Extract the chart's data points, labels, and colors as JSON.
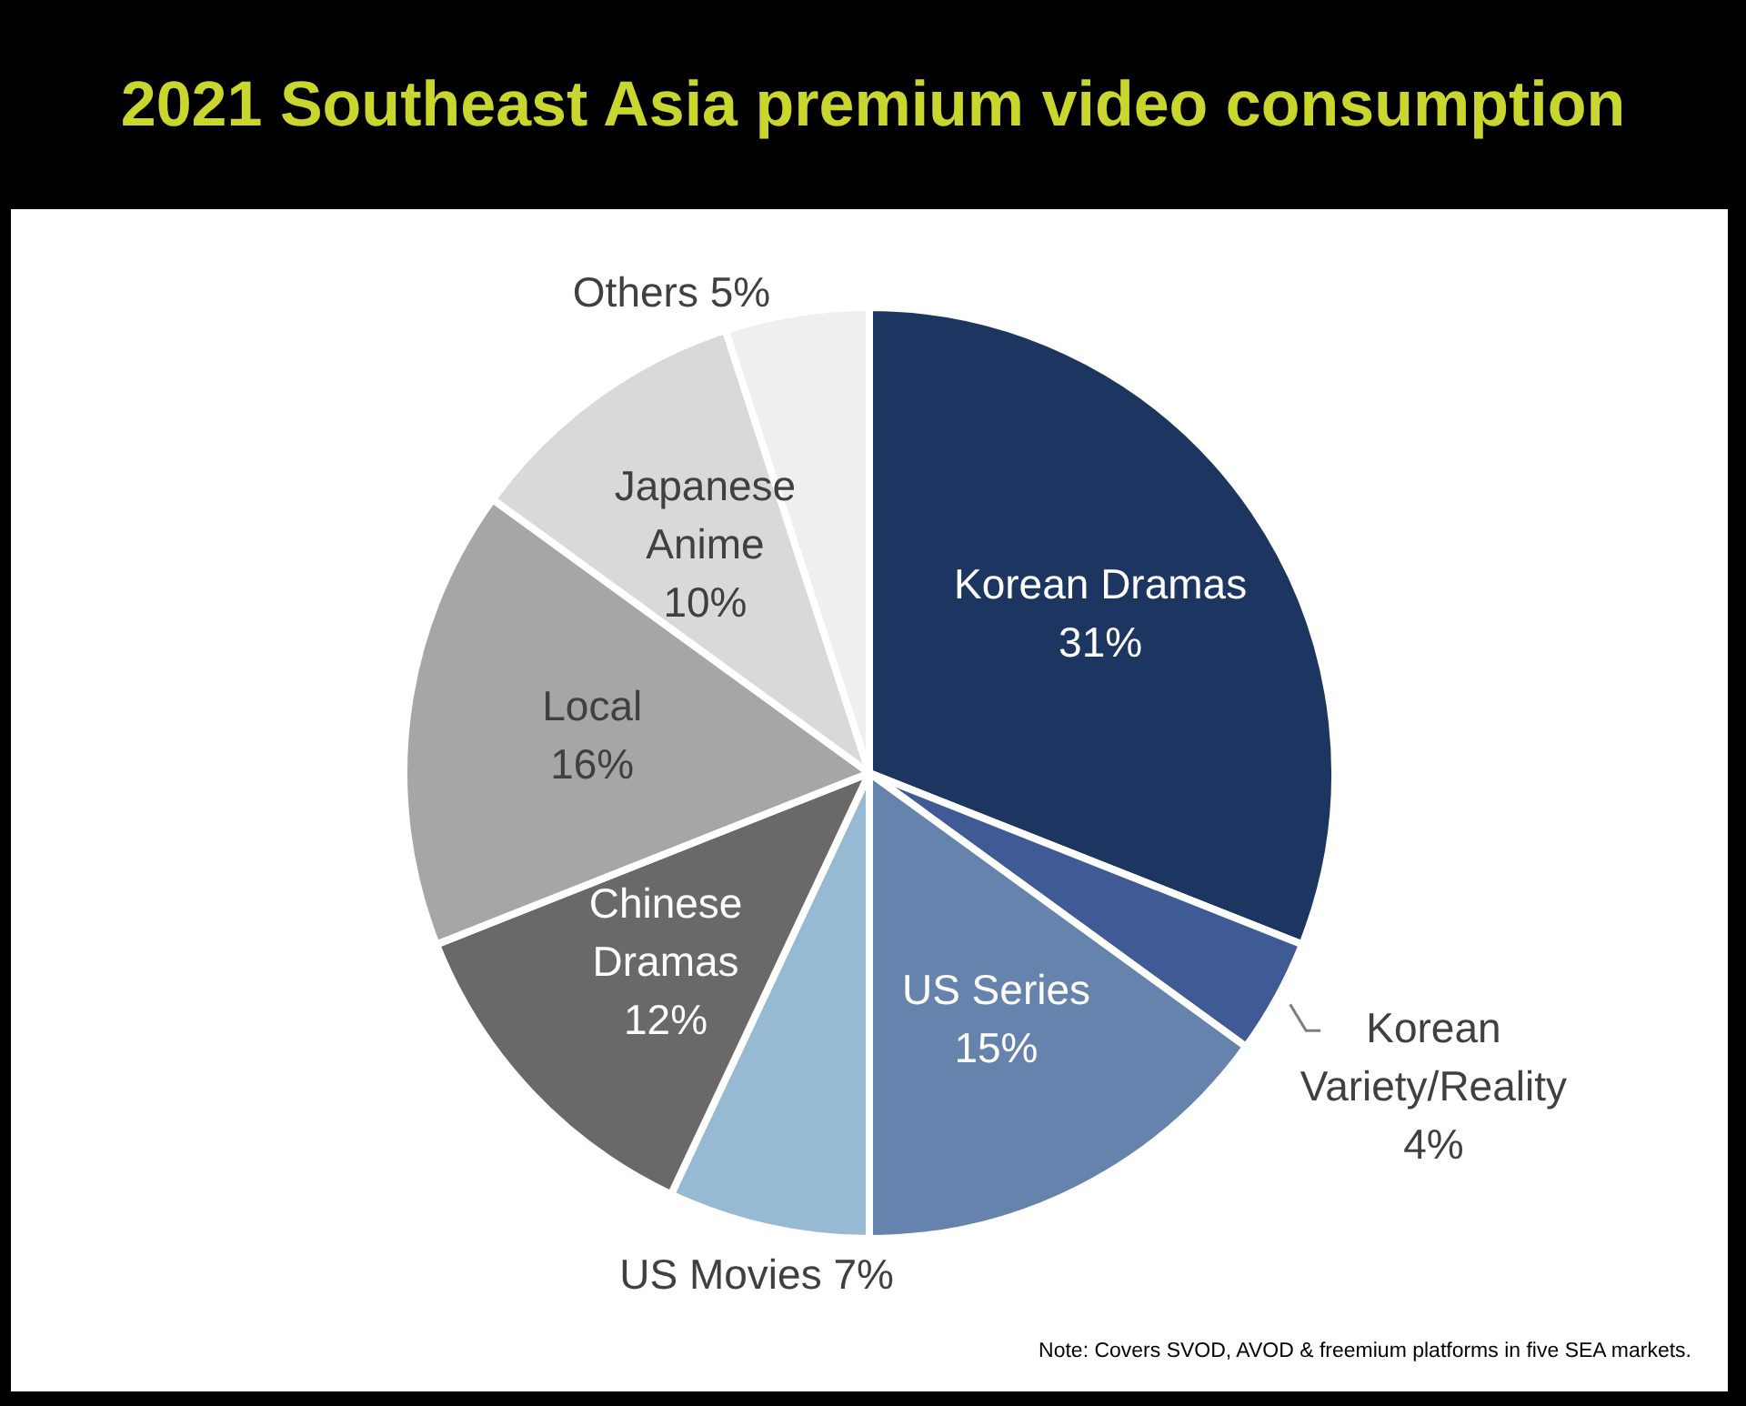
{
  "chart_data": {
    "type": "pie",
    "title": "2021 Southeast Asia premium video consumption",
    "categories": [
      "Korean Dramas",
      "Korean Variety/Reality",
      "US Series",
      "US Movies",
      "Chinese Dramas",
      "Local",
      "Japanese Anime",
      "Others"
    ],
    "values": [
      31,
      4,
      15,
      7,
      12,
      16,
      10,
      5
    ],
    "colors": [
      "#1d3661",
      "#3f5a94",
      "#6683ad",
      "#97bad4",
      "#6b6868",
      "#a6a6a6",
      "#d9d9d9",
      "#efefef"
    ],
    "value_labels": [
      "31%",
      "4%",
      "15%",
      "7%",
      "12%",
      "16%",
      "10%",
      "5%"
    ],
    "legend": false,
    "annotations": [
      "Note: Covers SVOD, AVOD & freemium platforms in five SEA markets."
    ]
  }
}
